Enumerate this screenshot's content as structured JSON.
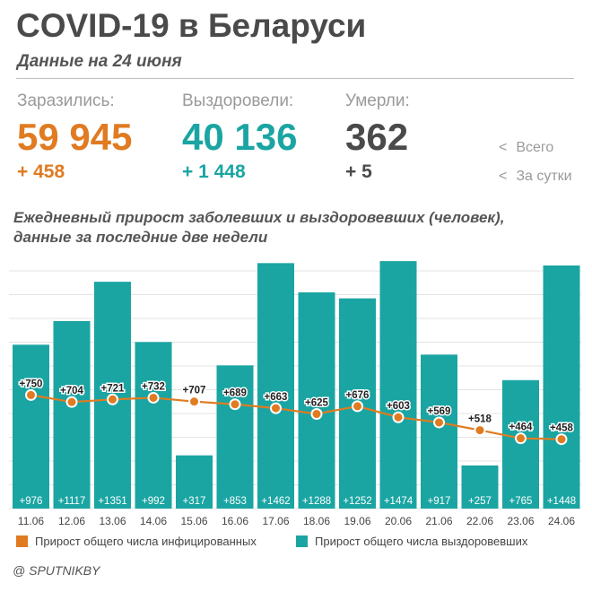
{
  "header": {
    "title": "COVID-19 в Беларуси",
    "subtitle": "Данные на 24 июня"
  },
  "stats": {
    "infected": {
      "label": "Заразились:",
      "total": "59 945",
      "delta": "+ 458",
      "color": "#e07b21"
    },
    "recovered": {
      "label": "Выздоровели:",
      "total": "40 136",
      "delta": "+ 1 448",
      "color": "#1aa5a3"
    },
    "deaths": {
      "label": "Умерли:",
      "total": "362",
      "delta": "+ 5",
      "color": "#4a4a4a"
    }
  },
  "stat_legend": {
    "arrow": "<",
    "total_label": "Всего",
    "daily_label": "За сутки"
  },
  "chart_title": {
    "line1": "Ежедневный прирост заболевших и выздоровевших (человек),",
    "line2": "данные за последние две недели"
  },
  "chart_data": {
    "type": "bar",
    "categories": [
      "11.06",
      "12.06",
      "13.06",
      "14.06",
      "15.06",
      "16.06",
      "17.06",
      "18.06",
      "19.06",
      "20.06",
      "21.06",
      "22.06",
      "23.06",
      "24.06"
    ],
    "series": [
      {
        "name": "Прирост общего числа выздоровевших",
        "type": "bar",
        "color": "#1aa5a3",
        "values": [
          976,
          1117,
          1351,
          992,
          317,
          853,
          1462,
          1288,
          1252,
          1474,
          917,
          257,
          765,
          1448
        ],
        "labels": [
          "+976",
          "+1117",
          "+1351",
          "+992",
          "+317",
          "+853",
          "+1462",
          "+1288",
          "+1252",
          "+1474",
          "+917",
          "+257",
          "+765",
          "+1448"
        ]
      },
      {
        "name": "Прирост общего числа инфицированных",
        "type": "line",
        "color": "#e07b21",
        "values": [
          750,
          704,
          721,
          732,
          707,
          689,
          663,
          625,
          676,
          603,
          569,
          518,
          464,
          458
        ],
        "labels": [
          "+750",
          "+704",
          "+721",
          "+732",
          "+707",
          "+689",
          "+663",
          "+625",
          "+676",
          "+603",
          "+569",
          "+518",
          "+464",
          "+458"
        ]
      }
    ],
    "bar_ylim": [
      0,
      1500
    ],
    "line_ylim": [
      0,
      1500
    ],
    "grid": true
  },
  "legend": {
    "infected": {
      "label": "Прирост общего числа инфицированных",
      "color": "#e07b21"
    },
    "recovered": {
      "label": "Прирост общего числа выздоровевших",
      "color": "#1aa5a3"
    }
  },
  "credit": "@ SPUTNIKBY"
}
